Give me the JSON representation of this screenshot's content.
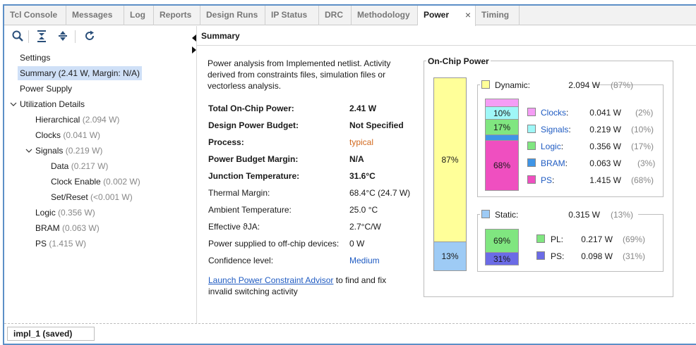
{
  "tabs": [
    {
      "label": "Tcl Console"
    },
    {
      "label": "Messages"
    },
    {
      "label": "Log"
    },
    {
      "label": "Reports"
    },
    {
      "label": "Design Runs"
    },
    {
      "label": "IP Status"
    },
    {
      "label": "DRC"
    },
    {
      "label": "Methodology"
    },
    {
      "label": "Power",
      "close": "×"
    },
    {
      "label": "Timing"
    }
  ],
  "toolbar": {
    "icons": [
      "search-icon",
      "collapse-all-icon",
      "expand-all-icon",
      "refresh-icon"
    ]
  },
  "tree": {
    "settings": "Settings",
    "summary": "Summary (2.41 W, Margin: N/A)",
    "power_supply": "Power Supply",
    "utilization": "Utilization Details",
    "hierarchical": {
      "name": "Hierarchical",
      "value": "(2.094 W)"
    },
    "clocks": {
      "name": "Clocks",
      "value": "(0.041 W)"
    },
    "signals": {
      "name": "Signals",
      "value": "(0.219 W)"
    },
    "data": {
      "name": "Data",
      "value": "(0.217 W)"
    },
    "clock_enable": {
      "name": "Clock Enable",
      "value": "(0.002 W)"
    },
    "set_reset": {
      "name": "Set/Reset",
      "value": "(<0.001 W)"
    },
    "logic": {
      "name": "Logic",
      "value": "(0.356 W)"
    },
    "bram": {
      "name": "BRAM",
      "value": "(0.063 W)"
    },
    "ps": {
      "name": "PS",
      "value": "(1.415 W)"
    }
  },
  "summary": {
    "header": "Summary",
    "intro": "Power analysis from Implemented netlist. Activity derived from constraints files, simulation files or vectorless analysis.",
    "rows": [
      {
        "label": "Total On-Chip Power:",
        "value": "2.41 W"
      },
      {
        "label": "Design Power Budget:",
        "value": "Not Specified"
      },
      {
        "label": "Process:",
        "value": "typical"
      },
      {
        "label": "Power Budget Margin:",
        "value": "N/A"
      },
      {
        "label": "Junction Temperature:",
        "value": "31.6°C"
      },
      {
        "label": "Thermal Margin:",
        "value": "68.4°C (24.7 W)"
      },
      {
        "label": "Ambient Temperature:",
        "value": "25.0 °C"
      },
      {
        "label": "Effective ϑJA:",
        "value": "2.7°C/W"
      },
      {
        "label": "Power supplied to off-chip devices:",
        "value": "0 W"
      },
      {
        "label": "Confidence level:",
        "value": "Medium"
      }
    ],
    "advisor_link": "Launch Power Constraint Advisor",
    "advisor_text": " to find and fix invalid switching activity"
  },
  "onchip": {
    "title": "On-Chip Power",
    "total_bar": {
      "dynamic_pct": "87%",
      "static_pct": "13%"
    },
    "dynamic": {
      "label": "Dynamic:",
      "value": "2.094 W",
      "pct": "(87%)",
      "items": [
        {
          "label": "Clocks",
          "sep": ":",
          "value": "0.041 W",
          "pct": "(2%)",
          "color": "#f59df5"
        },
        {
          "label": "Signals",
          "sep": ":",
          "value": "0.219 W",
          "pct": "(10%)",
          "color": "#9ff7f7"
        },
        {
          "label": "Logic",
          "sep": ":",
          "value": "0.356 W",
          "pct": "(17%)",
          "color": "#80e680"
        },
        {
          "label": "BRAM",
          "sep": ":",
          "value": "0.063 W",
          "pct": "(3%)",
          "color": "#3f95e6"
        },
        {
          "label": "PS",
          "sep": ":",
          "value": "1.415 W",
          "pct": "(68%)",
          "color": "#ef4fc0"
        }
      ],
      "bar_labels": [
        "10%",
        "17%",
        "68%"
      ]
    },
    "static": {
      "label": "Static:",
      "value": "0.315 W",
      "pct": "(13%)",
      "items": [
        {
          "label": "PL:",
          "value": "0.217 W",
          "pct": "(69%)",
          "color": "#80e680"
        },
        {
          "label": "PS:",
          "value": "0.098 W",
          "pct": "(31%)",
          "color": "#6b6be6"
        }
      ],
      "bar_labels": [
        "69%",
        "31%"
      ]
    },
    "colors": {
      "dynamic": "#ffff99",
      "static": "#9ecbf5"
    }
  },
  "status": {
    "run": "impl_1 (saved)"
  }
}
